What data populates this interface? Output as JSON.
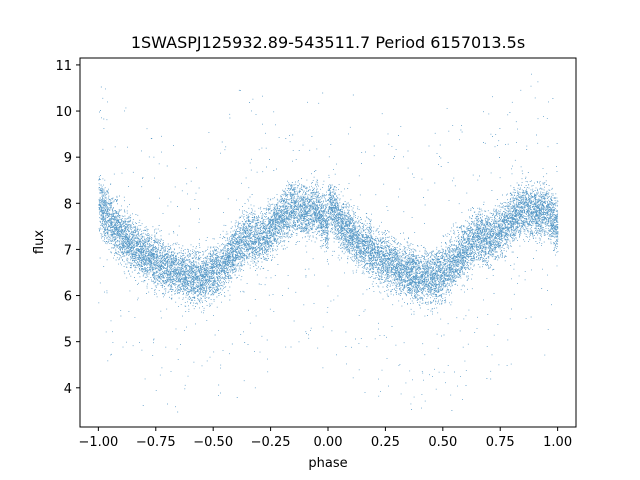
{
  "chart_data": {
    "type": "scatter",
    "title": "1SWASPJ125932.89-543511.7 Period 6157013.5s",
    "xlabel": "phase",
    "ylabel": "flux",
    "xlim": [
      -1.08,
      1.08
    ],
    "ylim": [
      3.15,
      11.15
    ],
    "xticks": [
      -1.0,
      -0.75,
      -0.5,
      -0.25,
      0.0,
      0.25,
      0.5,
      0.75,
      1.0
    ],
    "xtick_labels": [
      "−1.00",
      "−0.75",
      "−0.50",
      "−0.25",
      "0.00",
      "0.25",
      "0.50",
      "0.75",
      "1.00"
    ],
    "yticks": [
      4,
      5,
      6,
      7,
      8,
      9,
      10,
      11
    ],
    "ytick_labels": [
      "4",
      "5",
      "6",
      "7",
      "8",
      "9",
      "10",
      "11"
    ],
    "grid": false,
    "marker_color": "#1f77b4",
    "phase_curve": {
      "x": [
        0.0,
        0.05,
        0.1,
        0.15,
        0.2,
        0.25,
        0.3,
        0.35,
        0.4,
        0.45,
        0.5,
        0.55,
        0.6,
        0.65,
        0.7,
        0.75,
        0.8,
        0.85,
        0.9,
        0.95,
        1.0
      ],
      "y": [
        8.0,
        7.6,
        7.3,
        7.1,
        6.9,
        6.75,
        6.6,
        6.5,
        6.4,
        6.35,
        6.5,
        6.7,
        7.0,
        7.3,
        7.2,
        7.4,
        7.7,
        7.9,
        7.8,
        7.85,
        7.5
      ]
    },
    "scatter_band_halfwidth": 0.55,
    "n_points_per_cycle": 9000,
    "series": [
      {
        "values_note": "",
        "values": []
      }
    ]
  }
}
